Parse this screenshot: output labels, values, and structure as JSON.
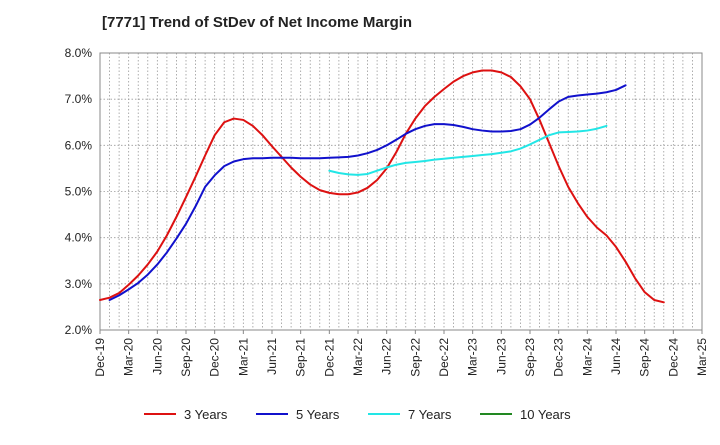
{
  "chart_data": {
    "type": "line",
    "title": "[7771]  Trend of StDev of Net Income Margin",
    "xlabel": "",
    "ylabel": "",
    "x_ticks": [
      "Dec-19",
      "Mar-20",
      "Jun-20",
      "Sep-20",
      "Dec-20",
      "Mar-21",
      "Jun-21",
      "Sep-21",
      "Dec-21",
      "Mar-22",
      "Jun-22",
      "Sep-22",
      "Dec-22",
      "Mar-23",
      "Jun-23",
      "Sep-23",
      "Dec-23",
      "Mar-24",
      "Jun-24",
      "Sep-24",
      "Dec-24",
      "Mar-25"
    ],
    "y_ticks": [
      "2.0%",
      "3.0%",
      "4.0%",
      "5.0%",
      "6.0%",
      "7.0%",
      "8.0%"
    ],
    "ylim": [
      2.0,
      8.0
    ],
    "grid": true,
    "legend_position": "bottom",
    "series": [
      {
        "name": "3 Years",
        "color": "#dd1111",
        "points": [
          [
            "Dec-19",
            2.65
          ],
          [
            "Jan-20",
            2.7
          ],
          [
            "Feb-20",
            2.8
          ],
          [
            "Mar-20",
            2.98
          ],
          [
            "Apr-20",
            3.18
          ],
          [
            "May-20",
            3.42
          ],
          [
            "Jun-20",
            3.7
          ],
          [
            "Jul-20",
            4.05
          ],
          [
            "Aug-20",
            4.45
          ],
          [
            "Sep-20",
            4.88
          ],
          [
            "Oct-20",
            5.32
          ],
          [
            "Nov-20",
            5.78
          ],
          [
            "Dec-20",
            6.22
          ],
          [
            "Jan-21",
            6.5
          ],
          [
            "Feb-21",
            6.58
          ],
          [
            "Mar-21",
            6.55
          ],
          [
            "Apr-21",
            6.42
          ],
          [
            "May-21",
            6.22
          ],
          [
            "Jun-21",
            5.98
          ],
          [
            "Jul-21",
            5.75
          ],
          [
            "Aug-21",
            5.52
          ],
          [
            "Sep-21",
            5.32
          ],
          [
            "Oct-21",
            5.15
          ],
          [
            "Nov-21",
            5.03
          ],
          [
            "Dec-21",
            4.97
          ],
          [
            "Jan-22",
            4.94
          ],
          [
            "Feb-22",
            4.94
          ],
          [
            "Mar-22",
            4.98
          ],
          [
            "Apr-22",
            5.08
          ],
          [
            "May-22",
            5.25
          ],
          [
            "Jun-22",
            5.5
          ],
          [
            "Jul-22",
            5.85
          ],
          [
            "Aug-22",
            6.25
          ],
          [
            "Sep-22",
            6.58
          ],
          [
            "Oct-22",
            6.85
          ],
          [
            "Nov-22",
            7.05
          ],
          [
            "Dec-22",
            7.22
          ],
          [
            "Jan-23",
            7.38
          ],
          [
            "Feb-23",
            7.5
          ],
          [
            "Mar-23",
            7.58
          ],
          [
            "Apr-23",
            7.62
          ],
          [
            "May-23",
            7.62
          ],
          [
            "Jun-23",
            7.58
          ],
          [
            "Jul-23",
            7.48
          ],
          [
            "Aug-23",
            7.28
          ],
          [
            "Sep-23",
            7.0
          ],
          [
            "Oct-23",
            6.55
          ],
          [
            "Nov-23",
            6.05
          ],
          [
            "Dec-23",
            5.55
          ],
          [
            "Jan-24",
            5.1
          ],
          [
            "Feb-24",
            4.75
          ],
          [
            "Mar-24",
            4.45
          ],
          [
            "Apr-24",
            4.22
          ],
          [
            "May-24",
            4.05
          ],
          [
            "Jun-24",
            3.8
          ],
          [
            "Jul-24",
            3.48
          ],
          [
            "Aug-24",
            3.12
          ],
          [
            "Sep-24",
            2.82
          ],
          [
            "Oct-24",
            2.65
          ],
          [
            "Nov-24",
            2.6
          ]
        ]
      },
      {
        "name": "5 Years",
        "color": "#1111cc",
        "points": [
          [
            "Jan-20",
            2.65
          ],
          [
            "Feb-20",
            2.75
          ],
          [
            "Mar-20",
            2.88
          ],
          [
            "Apr-20",
            3.02
          ],
          [
            "May-20",
            3.2
          ],
          [
            "Jun-20",
            3.42
          ],
          [
            "Jul-20",
            3.68
          ],
          [
            "Aug-20",
            3.98
          ],
          [
            "Sep-20",
            4.3
          ],
          [
            "Oct-20",
            4.68
          ],
          [
            "Nov-20",
            5.1
          ],
          [
            "Dec-20",
            5.35
          ],
          [
            "Jan-21",
            5.55
          ],
          [
            "Feb-21",
            5.65
          ],
          [
            "Mar-21",
            5.7
          ],
          [
            "Apr-21",
            5.72
          ],
          [
            "May-21",
            5.72
          ],
          [
            "Jun-21",
            5.73
          ],
          [
            "Jul-21",
            5.73
          ],
          [
            "Aug-21",
            5.73
          ],
          [
            "Sep-21",
            5.72
          ],
          [
            "Oct-21",
            5.72
          ],
          [
            "Nov-21",
            5.72
          ],
          [
            "Dec-21",
            5.73
          ],
          [
            "Jan-22",
            5.74
          ],
          [
            "Feb-22",
            5.75
          ],
          [
            "Mar-22",
            5.78
          ],
          [
            "Apr-22",
            5.83
          ],
          [
            "May-22",
            5.9
          ],
          [
            "Jun-22",
            6.0
          ],
          [
            "Jul-22",
            6.12
          ],
          [
            "Aug-22",
            6.25
          ],
          [
            "Sep-22",
            6.35
          ],
          [
            "Oct-22",
            6.42
          ],
          [
            "Nov-22",
            6.46
          ],
          [
            "Dec-22",
            6.46
          ],
          [
            "Jan-23",
            6.44
          ],
          [
            "Feb-23",
            6.4
          ],
          [
            "Mar-23",
            6.35
          ],
          [
            "Apr-23",
            6.32
          ],
          [
            "May-23",
            6.3
          ],
          [
            "Jun-23",
            6.3
          ],
          [
            "Jul-23",
            6.31
          ],
          [
            "Aug-23",
            6.35
          ],
          [
            "Sep-23",
            6.45
          ],
          [
            "Oct-23",
            6.6
          ],
          [
            "Nov-23",
            6.78
          ],
          [
            "Dec-23",
            6.95
          ],
          [
            "Jan-24",
            7.05
          ],
          [
            "Feb-24",
            7.08
          ],
          [
            "Mar-24",
            7.1
          ],
          [
            "Apr-24",
            7.12
          ],
          [
            "May-24",
            7.15
          ],
          [
            "Jun-24",
            7.2
          ],
          [
            "Jul-24",
            7.3
          ]
        ]
      },
      {
        "name": "7 Years",
        "color": "#22e6e6",
        "points": [
          [
            "Dec-21",
            5.45
          ],
          [
            "Jan-22",
            5.4
          ],
          [
            "Feb-22",
            5.37
          ],
          [
            "Mar-22",
            5.36
          ],
          [
            "Apr-22",
            5.38
          ],
          [
            "May-22",
            5.45
          ],
          [
            "Jun-22",
            5.52
          ],
          [
            "Jul-22",
            5.58
          ],
          [
            "Aug-22",
            5.62
          ],
          [
            "Sep-22",
            5.64
          ],
          [
            "Oct-22",
            5.66
          ],
          [
            "Nov-22",
            5.69
          ],
          [
            "Dec-22",
            5.71
          ],
          [
            "Jan-23",
            5.73
          ],
          [
            "Feb-23",
            5.75
          ],
          [
            "Mar-23",
            5.77
          ],
          [
            "Apr-23",
            5.79
          ],
          [
            "May-23",
            5.81
          ],
          [
            "Jun-23",
            5.84
          ],
          [
            "Jul-23",
            5.87
          ],
          [
            "Aug-23",
            5.93
          ],
          [
            "Sep-23",
            6.02
          ],
          [
            "Oct-23",
            6.12
          ],
          [
            "Nov-23",
            6.22
          ],
          [
            "Dec-23",
            6.28
          ],
          [
            "Jan-24",
            6.29
          ],
          [
            "Feb-24",
            6.3
          ],
          [
            "Mar-24",
            6.32
          ],
          [
            "Apr-24",
            6.36
          ],
          [
            "May-24",
            6.42
          ]
        ]
      },
      {
        "name": "10 Years",
        "color": "#228822",
        "points": []
      }
    ]
  }
}
